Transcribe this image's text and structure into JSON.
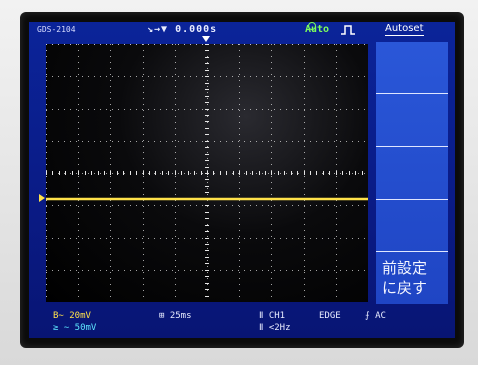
{
  "header": {
    "model": "GDS-2104",
    "time_offset": "↘→▼ 0.000s",
    "acquire_mode": "Auto",
    "autoset_label": "Autoset"
  },
  "menu": {
    "recall_label": "前設定\nに戻す"
  },
  "status": {
    "ch1_scale": "B∼ 20mV",
    "ch2_scale": "≥ ∼ 50mV",
    "timebase": "⊞ 25ms",
    "trigger_source": "Ⅱ CH1",
    "trigger_type": "EDGE",
    "coupling": "⨍ AC",
    "frequency": "Ⅱ <2Hz"
  },
  "colors": {
    "screen_bg": "#0a1b86",
    "menu_bg": "#2a57d8",
    "trace_ch1": "#ffe24a",
    "ch2_text": "#5ee7ff",
    "auto_green": "#7dff5a"
  },
  "chart_data": {
    "type": "line",
    "series": [
      {
        "name": "",
        "color": "#ffe24a",
        "values": [
          0,
          0,
          0,
          0,
          0,
          0,
          0,
          0,
          0,
          0,
          0
        ]
      }
    ],
    "x_divisions": 10,
    "y_divisions": 8,
    "grid": true
  }
}
